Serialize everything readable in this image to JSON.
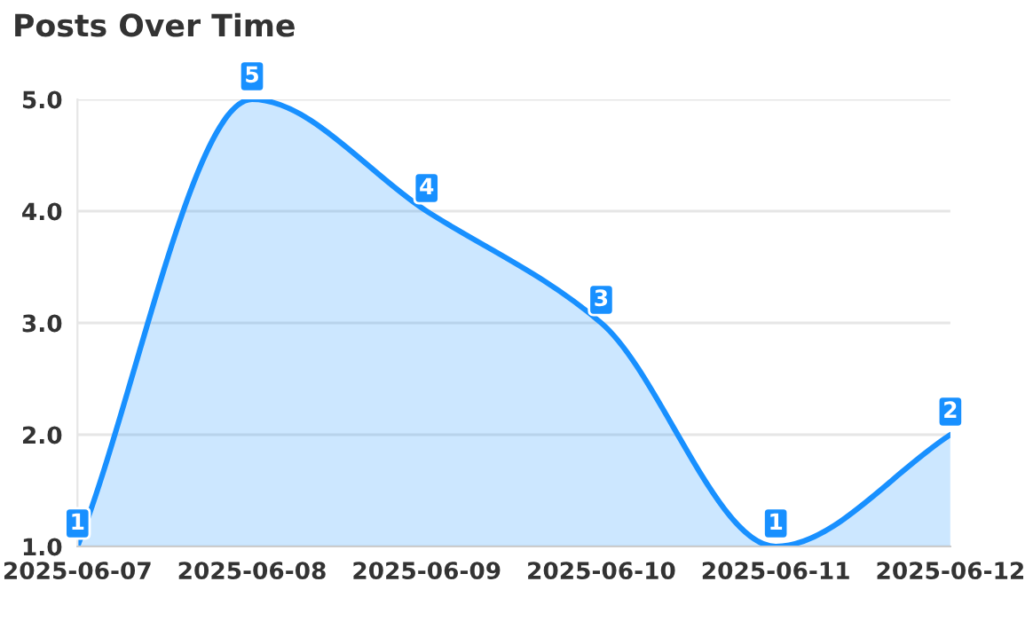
{
  "chart_data": {
    "type": "area",
    "title": "Posts Over Time",
    "x": [
      "2025-06-07",
      "2025-06-08",
      "2025-06-09",
      "2025-06-10",
      "2025-06-11",
      "2025-06-12"
    ],
    "series": [
      {
        "color": "#1890ff",
        "values": [
          1,
          5,
          4,
          3,
          1,
          2
        ]
      }
    ],
    "ylim": [
      1,
      5
    ],
    "yticks": [
      {
        "value": 1,
        "label": "1.0"
      },
      {
        "value": 2,
        "label": "2.0"
      },
      {
        "value": 3,
        "label": "3.0"
      },
      {
        "value": 4,
        "label": "4.0"
      },
      {
        "value": 5,
        "label": "5.0"
      }
    ],
    "grid": "y",
    "data_labels": true,
    "line_style": "solid"
  }
}
